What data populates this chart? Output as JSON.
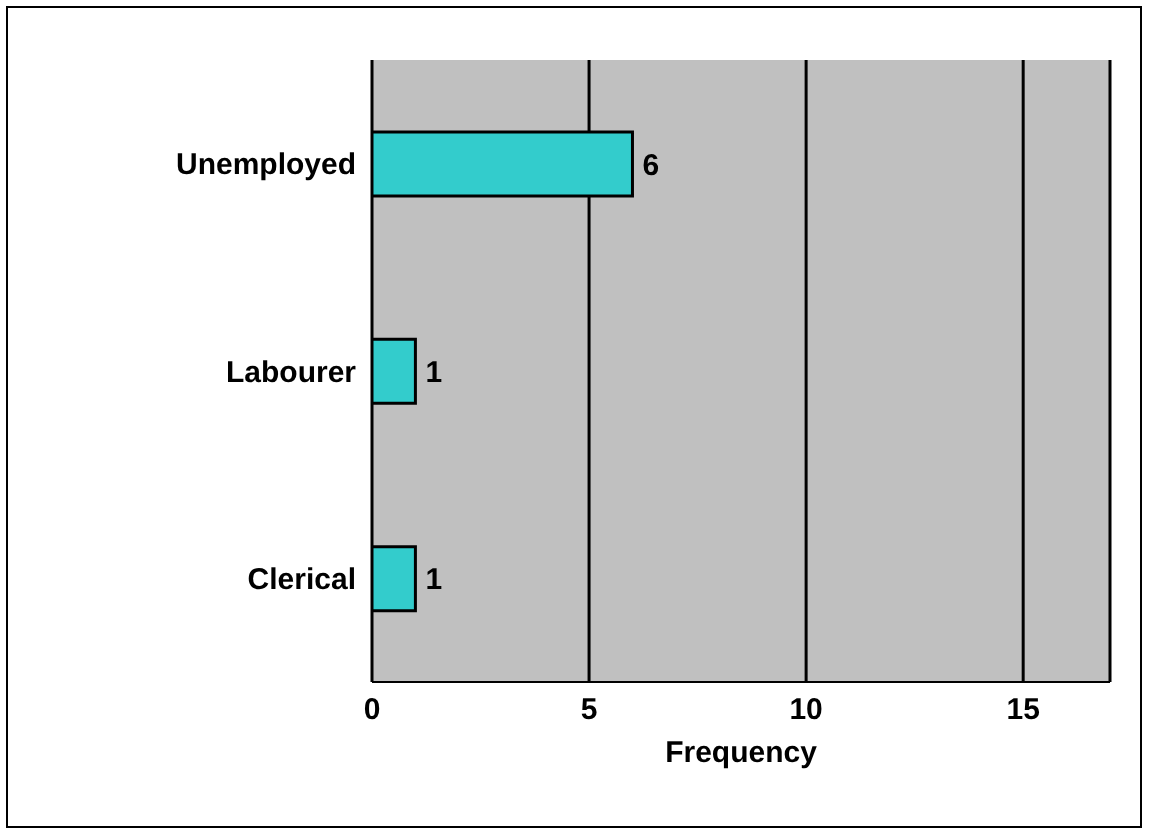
{
  "chart_data": {
    "type": "bar",
    "orientation": "horizontal",
    "xlabel": "Frequency",
    "categories": [
      "Unemployed",
      "Labourer",
      "Clerical"
    ],
    "values": [
      6,
      1,
      1
    ],
    "color": "#33cccc",
    "xlim": [
      0,
      17
    ],
    "xticks": [
      0,
      5,
      10,
      15
    ],
    "grid": "x",
    "data_labels": true
  }
}
